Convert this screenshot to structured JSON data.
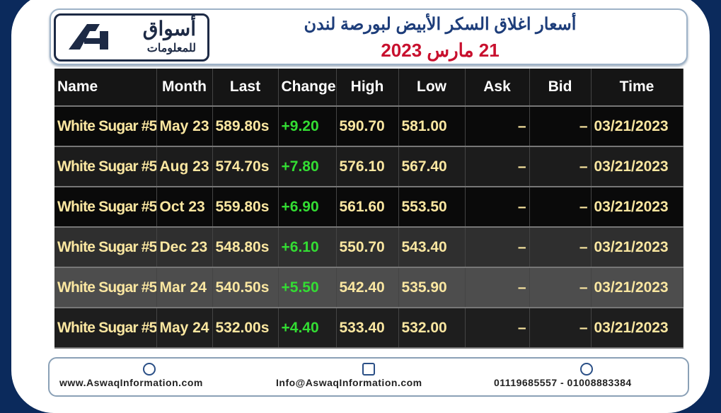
{
  "header": {
    "logo_main": "أسواق",
    "logo_sub": "للمعلومات",
    "title": "أسعار اغلاق السكر الأبيض لبورصة لندن",
    "date": "21 مارس 2023"
  },
  "table": {
    "columns": [
      "Name",
      "Month",
      "Last",
      "Change",
      "High",
      "Low",
      "Ask",
      "Bid",
      "Time"
    ],
    "rows": [
      [
        "White Sugar #5",
        "May 23",
        "589.80s",
        "+9.20",
        "590.70",
        "581.00",
        "–",
        "–",
        "03/21/2023"
      ],
      [
        "White Sugar #5",
        "Aug 23",
        "574.70s",
        "+7.80",
        "576.10",
        "567.40",
        "–",
        "–",
        "03/21/2023"
      ],
      [
        "White Sugar #5",
        "Oct 23",
        "559.80s",
        "+6.90",
        "561.60",
        "553.50",
        "–",
        "–",
        "03/21/2023"
      ],
      [
        "White Sugar #5",
        "Dec 23",
        "548.80s",
        "+6.10",
        "550.70",
        "543.40",
        "–",
        "–",
        "03/21/2023"
      ],
      [
        "White Sugar #5",
        "Mar 24",
        "540.50s",
        "+5.50",
        "542.40",
        "535.90",
        "–",
        "–",
        "03/21/2023"
      ],
      [
        "White Sugar #5",
        "May 24",
        "532.00s",
        "+4.40",
        "533.40",
        "532.00",
        "–",
        "–",
        "03/21/2023"
      ]
    ]
  },
  "footer": {
    "website": "www.AswaqInformation.com",
    "email": "Info@AswaqInformation.com",
    "phone": "01119685557 - 01008883384"
  }
}
